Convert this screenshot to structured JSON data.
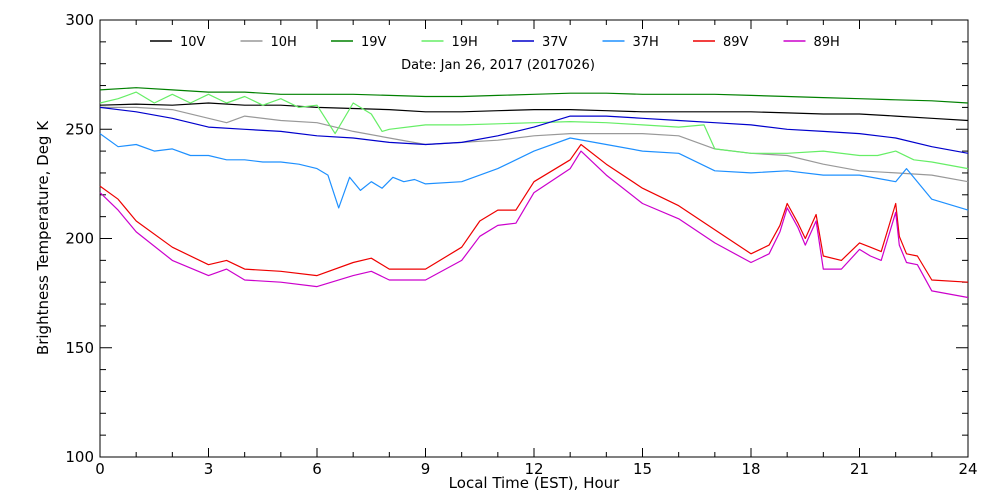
{
  "chart_data": {
    "type": "line",
    "title": "",
    "subtitle": "Date: Jan 26, 2017 (2017026)",
    "xlabel": "Local Time (EST), Hour",
    "ylabel": "Brightness Temperature, Deg K",
    "xlim": [
      0,
      24
    ],
    "ylim": [
      100,
      300
    ],
    "xticks": [
      0,
      3,
      6,
      9,
      12,
      15,
      18,
      21,
      24
    ],
    "yticks": [
      100,
      150,
      200,
      250,
      300
    ],
    "grid": false,
    "legend_position": "top",
    "series": [
      {
        "name": "10V",
        "color": "#000000",
        "x": [
          0,
          1,
          2,
          3,
          4,
          5,
          6,
          7,
          8,
          9,
          10,
          11,
          12,
          13,
          14,
          15,
          16,
          17,
          18,
          19,
          20,
          21,
          22,
          23,
          24
        ],
        "y": [
          261,
          261.5,
          261,
          262,
          261,
          261,
          260,
          259.5,
          259,
          258,
          258,
          258.5,
          259,
          259,
          258.5,
          258,
          258,
          258,
          258,
          257.5,
          257,
          257,
          256,
          255,
          254
        ]
      },
      {
        "name": "10H",
        "color": "#999999",
        "x": [
          0,
          1,
          2,
          3,
          3.5,
          4,
          5,
          6,
          7,
          8,
          9,
          10,
          11,
          12,
          13,
          14,
          15,
          16,
          17,
          18,
          19,
          20,
          21,
          22,
          23,
          24
        ],
        "y": [
          260,
          260,
          259,
          255,
          253,
          256,
          254,
          253,
          249,
          246,
          243,
          244,
          245,
          247,
          248,
          248,
          248,
          247,
          241,
          239,
          238,
          234,
          231,
          230,
          229,
          226
        ]
      },
      {
        "name": "19V",
        "color": "#008000",
        "x": [
          0,
          1,
          2,
          3,
          4,
          5,
          6,
          7,
          8,
          9,
          10,
          11,
          12,
          13,
          14,
          15,
          16,
          17,
          18,
          19,
          20,
          21,
          22,
          23,
          24
        ],
        "y": [
          268,
          269,
          268,
          267,
          267,
          266,
          266,
          266,
          265.5,
          265,
          265,
          265.5,
          266,
          266.5,
          266.5,
          266,
          266,
          266,
          265.5,
          265,
          264.5,
          264,
          263.5,
          263,
          262
        ]
      },
      {
        "name": "19H",
        "color": "#66ee66",
        "x": [
          0,
          0.5,
          1,
          1.5,
          2,
          2.5,
          3,
          3.5,
          4,
          4.5,
          5,
          5.5,
          6,
          6.5,
          7,
          7.5,
          7.8,
          8,
          9,
          10,
          11,
          12,
          13,
          14,
          15,
          16,
          16.7,
          17,
          18,
          19,
          20,
          21,
          21.5,
          22,
          22.5,
          23,
          24
        ],
        "y": [
          262,
          264,
          267,
          262,
          266,
          262,
          266,
          262,
          265,
          261,
          264,
          260,
          261,
          248,
          262,
          257,
          249,
          250,
          252,
          252,
          252.5,
          253,
          253.5,
          253,
          252,
          251,
          252,
          241,
          239,
          239,
          240,
          238,
          238,
          240,
          236,
          235,
          232
        ]
      },
      {
        "name": "37V",
        "color": "#0000cc",
        "x": [
          0,
          1,
          2,
          3,
          4,
          5,
          6,
          7,
          8,
          9,
          10,
          11,
          12,
          13,
          14,
          15,
          16,
          17,
          18,
          19,
          20,
          21,
          22,
          23,
          24
        ],
        "y": [
          260,
          258,
          255,
          251,
          250,
          249,
          247,
          246,
          244,
          243,
          244,
          247,
          251,
          256,
          256,
          255,
          254,
          253,
          252,
          250,
          249,
          248,
          246,
          242,
          239
        ]
      },
      {
        "name": "37H",
        "color": "#1e90ff",
        "x": [
          0,
          0.5,
          1,
          1.5,
          2,
          2.5,
          3,
          3.5,
          4,
          4.5,
          5,
          5.5,
          6,
          6.3,
          6.6,
          6.9,
          7.2,
          7.5,
          7.8,
          8.1,
          8.4,
          8.7,
          9,
          10,
          11,
          12,
          13,
          14,
          15,
          16,
          17,
          18,
          19,
          20,
          21,
          22,
          22.3,
          23,
          24
        ],
        "y": [
          248,
          242,
          243,
          240,
          241,
          238,
          238,
          236,
          236,
          235,
          235,
          234,
          232,
          229,
          214,
          228,
          222,
          226,
          223,
          228,
          226,
          227,
          225,
          226,
          232,
          240,
          246,
          243,
          240,
          239,
          231,
          230,
          231,
          229,
          229,
          226,
          232,
          218,
          213
        ]
      },
      {
        "name": "89V",
        "color": "#ee0000",
        "x": [
          0,
          0.5,
          1,
          2,
          3,
          3.5,
          4,
          5,
          6,
          7,
          7.5,
          8,
          9,
          10,
          10.5,
          11,
          11.5,
          12,
          13,
          13.3,
          14,
          15,
          16,
          17,
          18,
          18.5,
          18.8,
          19,
          19.3,
          19.5,
          19.8,
          20,
          20.5,
          21,
          21.3,
          21.6,
          22,
          22.1,
          22.3,
          22.6,
          23,
          24
        ],
        "y": [
          224,
          218,
          208,
          196,
          188,
          190,
          186,
          185,
          183,
          189,
          191,
          186,
          186,
          196,
          208,
          213,
          213,
          226,
          236,
          243,
          234,
          223,
          215,
          204,
          193,
          197,
          206,
          216,
          207,
          200,
          211,
          192,
          190,
          198,
          196,
          194,
          216,
          201,
          193,
          192,
          181,
          180
        ]
      },
      {
        "name": "89H",
        "color": "#cc00cc",
        "x": [
          0,
          0.5,
          1,
          2,
          3,
          3.5,
          4,
          5,
          6,
          7,
          7.5,
          8,
          9,
          10,
          10.5,
          11,
          11.5,
          12,
          13,
          13.3,
          14,
          15,
          16,
          17,
          18,
          18.5,
          18.8,
          19,
          19.3,
          19.5,
          19.8,
          20,
          20.5,
          21,
          21.3,
          21.6,
          22,
          22.1,
          22.3,
          22.6,
          23,
          24
        ],
        "y": [
          221,
          213,
          203,
          190,
          183,
          186,
          181,
          180,
          178,
          183,
          185,
          181,
          181,
          190,
          201,
          206,
          207,
          221,
          232,
          240,
          229,
          216,
          209,
          198,
          189,
          193,
          203,
          214,
          205,
          197,
          208,
          186,
          186,
          195,
          192,
          190,
          212,
          197,
          189,
          188,
          176,
          173
        ]
      }
    ]
  }
}
